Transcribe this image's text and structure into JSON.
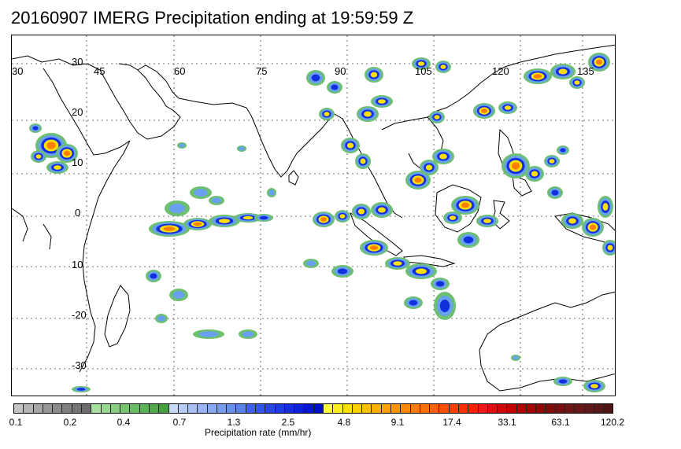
{
  "title": "20160907 IMERG Precipitation ending at 19:59:59 Z",
  "map": {
    "longitude_labels": [
      "30",
      "45",
      "60",
      "75",
      "90",
      "105",
      "120",
      "135"
    ],
    "latitude_labels": [
      "30",
      "20",
      "10",
      "0",
      "10",
      "-20",
      "-30"
    ],
    "gridlines": "dotted",
    "lon_range": [
      30,
      140
    ],
    "lat_range": [
      -38,
      36
    ]
  },
  "colorbar": {
    "tick_labels": [
      "0.1",
      "0.2",
      "0.4",
      "0.7",
      "1.3",
      "2.5",
      "4.8",
      "9.1",
      "17.4",
      "33.1",
      "63.1",
      "120.2"
    ],
    "label": "Precipitation rate (mm/hr)",
    "colors": [
      "#c4c4c4",
      "#b4b4b4",
      "#a6a6a6",
      "#989898",
      "#8c8c8c",
      "#808080",
      "#767676",
      "#6c6c6c",
      "#a8e0a0",
      "#98d890",
      "#88cf80",
      "#78c670",
      "#68bd62",
      "#5ab456",
      "#50aa4c",
      "#46a040",
      "#c8d8f8",
      "#b8ccf6",
      "#a8c0f4",
      "#98b4f2",
      "#88a8ef",
      "#789cec",
      "#6890ea",
      "#5884e6",
      "#4060f0",
      "#3454ee",
      "#2848ea",
      "#1c3ce6",
      "#1230e2",
      "#0a24dc",
      "#0418d4",
      "#0010c8",
      "#ffff40",
      "#ffef20",
      "#ffe000",
      "#ffd000",
      "#ffc000",
      "#ffb000",
      "#ffa000",
      "#ff9400",
      "#ff8800",
      "#ff7c00",
      "#ff7000",
      "#ff6000",
      "#ff5000",
      "#ff4000",
      "#ff3000",
      "#ff2000",
      "#f01818",
      "#e01010",
      "#d00808",
      "#c00000",
      "#b00000",
      "#a00404",
      "#900808",
      "#800c0c",
      "#781010",
      "#701414",
      "#681818",
      "#601818",
      "#581818",
      "#501414"
    ]
  },
  "palette": {
    "green": "#6cc070",
    "blue_light": "#6aa0f0",
    "blue_dark": "#1030e0",
    "yellow": "#ffe000",
    "orange": "#ff8000",
    "red": "#ff2000"
  }
}
